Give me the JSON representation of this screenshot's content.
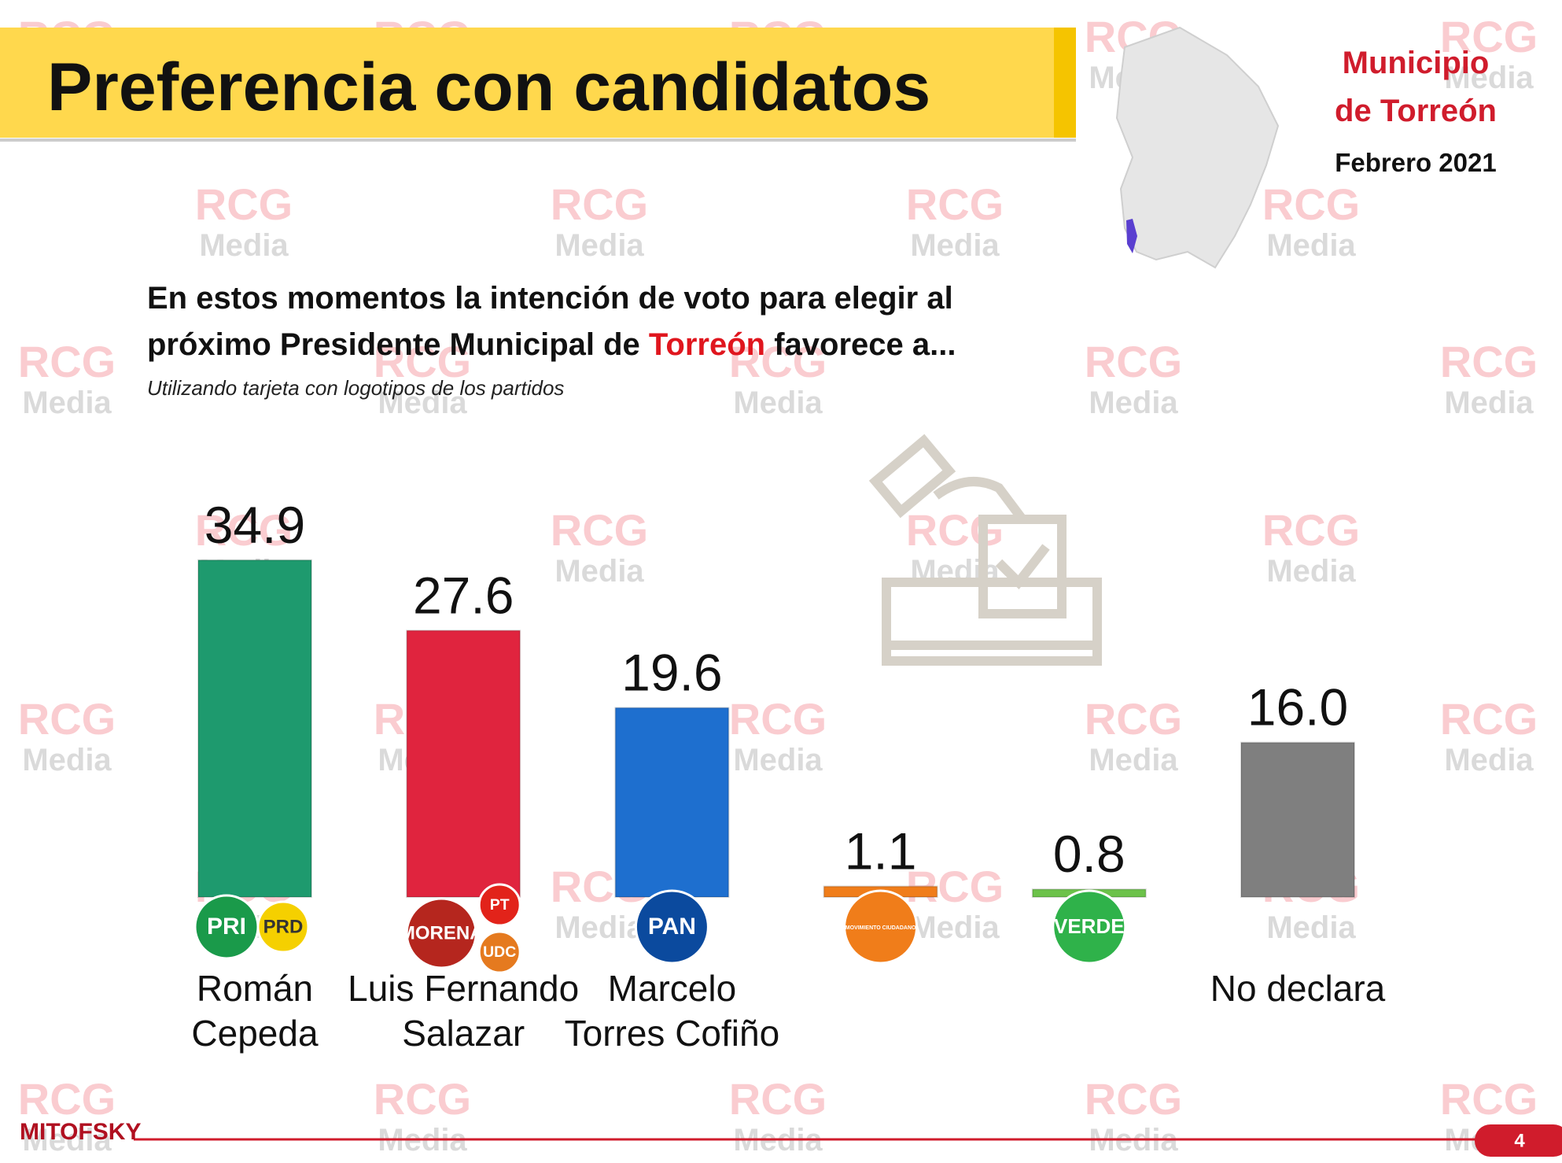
{
  "title": "Preferencia con candidatos",
  "municipality": "Municipio\nde Torreón",
  "date": "Febrero 2021",
  "question": [
    "En estos momentos la intención de voto para elegir al\npróximo Presidente Municipal de ",
    "Torreón",
    " favorece a..."
  ],
  "note": "Utilizando tarjeta con logotipos de los partidos",
  "watermark": [
    "RCG",
    "Media"
  ],
  "footer": {
    "brand": "MITOFSKY",
    "page": "4"
  },
  "chart_data": {
    "type": "bar",
    "categories": [
      "Román\nCepeda",
      "Luis Fernando\nSalazar",
      "Marcelo\nTorres Cofiño",
      null,
      null,
      "No declara"
    ],
    "values": [
      34.9,
      27.6,
      19.6,
      1.1,
      0.8,
      16.0
    ],
    "value_labels": [
      "34.9",
      "27.6",
      "19.6",
      "1.1",
      "0.8",
      "16.0"
    ],
    "colors": [
      "#1e9a6e",
      "#e0243e",
      "#1e6fcf",
      "#f07d1a",
      "#6cc24a",
      "#7f7f7f"
    ],
    "logos": [
      [
        {
          "text": "PRI",
          "color": "#1a9a4a"
        },
        {
          "text": "PRD",
          "color": "#f5d000"
        }
      ],
      [
        {
          "text": "MORENA",
          "color": "#b5261e"
        },
        {
          "text": "PT",
          "color": "#e2231a"
        },
        {
          "text": "UDC",
          "color": "#e57a1f"
        }
      ],
      [
        {
          "text": "PAN",
          "color": "#0b4a9e"
        }
      ],
      [
        {
          "text": "MOVIMIENTO CIUDADANO",
          "color": "#f07d1a"
        }
      ],
      [
        {
          "text": "VERDE",
          "color": "#2fb24a"
        }
      ],
      []
    ]
  }
}
